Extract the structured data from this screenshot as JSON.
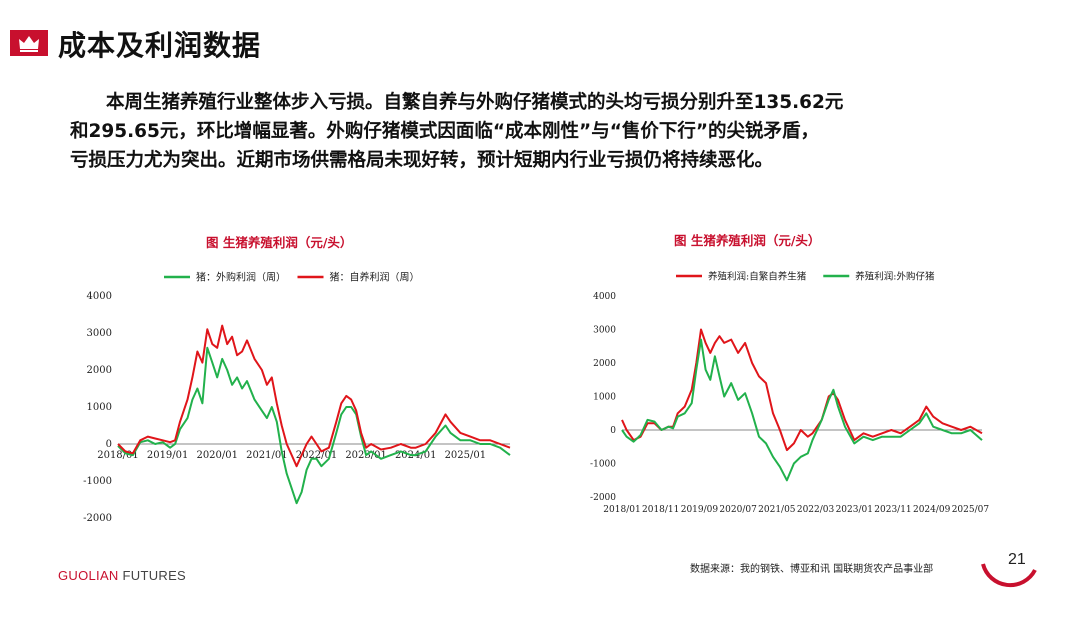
{
  "header": {
    "title": "成本及利润数据",
    "icon": "crown-icon",
    "accent": "#c8102e"
  },
  "summary": [
    "本周生猪养殖行业整体步入亏损。自繁自养与外购仔猪模式的头均亏损分别升至135.62元",
    "和295.65元，环比增幅显著。外购仔猪模式因面临“成本刚性”与“售价下行”的尖锐矛盾，",
    "亏损压力尤为突出。近期市场供需格局未现好转，预计短期内行业亏损仍将持续恶化。"
  ],
  "footer": {
    "brand_main": "GUOLIAN",
    "brand_sub": " FUTURES",
    "source": "数据来源：我的钢铁、博亚和讯  国联期货农产品事业部",
    "page_number": "21"
  },
  "chart_data": [
    {
      "type": "line",
      "title": "图    生猪养殖利润（元/头）",
      "ylim": [
        -2000,
        4000
      ],
      "yticks": [
        "4000",
        "3000",
        "2000",
        "1000",
        "0",
        "-1000",
        "-2000"
      ],
      "xticks": [
        "2018/01",
        "2019/01",
        "2020/01",
        "2021/01",
        "2022/01",
        "2023/01",
        "2024/01",
        "2025/01"
      ],
      "xrange": [
        2018.0,
        2025.9
      ],
      "legend": "top",
      "series": [
        {
          "name": "猪：外购利润（周）",
          "color": "#22b14c",
          "points": [
            [
              2018.0,
              -50
            ],
            [
              2018.15,
              -250
            ],
            [
              2018.3,
              -300
            ],
            [
              2018.45,
              50
            ],
            [
              2018.6,
              100
            ],
            [
              2018.75,
              0
            ],
            [
              2018.9,
              50
            ],
            [
              2019.05,
              -100
            ],
            [
              2019.15,
              0
            ],
            [
              2019.25,
              400
            ],
            [
              2019.4,
              700
            ],
            [
              2019.5,
              1200
            ],
            [
              2019.6,
              1500
            ],
            [
              2019.7,
              1100
            ],
            [
              2019.8,
              2600
            ],
            [
              2019.9,
              2200
            ],
            [
              2020.0,
              1800
            ],
            [
              2020.1,
              2300
            ],
            [
              2020.2,
              2000
            ],
            [
              2020.3,
              1600
            ],
            [
              2020.4,
              1800
            ],
            [
              2020.5,
              1500
            ],
            [
              2020.6,
              1700
            ],
            [
              2020.75,
              1200
            ],
            [
              2020.9,
              900
            ],
            [
              2021.0,
              700
            ],
            [
              2021.1,
              1000
            ],
            [
              2021.2,
              600
            ],
            [
              2021.3,
              -200
            ],
            [
              2021.4,
              -800
            ],
            [
              2021.5,
              -1200
            ],
            [
              2021.6,
              -1600
            ],
            [
              2021.7,
              -1300
            ],
            [
              2021.8,
              -700
            ],
            [
              2021.9,
              -400
            ],
            [
              2022.0,
              -400
            ],
            [
              2022.1,
              -600
            ],
            [
              2022.25,
              -400
            ],
            [
              2022.4,
              300
            ],
            [
              2022.5,
              800
            ],
            [
              2022.6,
              1000
            ],
            [
              2022.7,
              1000
            ],
            [
              2022.8,
              800
            ],
            [
              2022.9,
              200
            ],
            [
              2023.0,
              -300
            ],
            [
              2023.1,
              -200
            ],
            [
              2023.3,
              -400
            ],
            [
              2023.5,
              -300
            ],
            [
              2023.7,
              -200
            ],
            [
              2023.9,
              -300
            ],
            [
              2024.0,
              -300
            ],
            [
              2024.2,
              -200
            ],
            [
              2024.4,
              200
            ],
            [
              2024.6,
              500
            ],
            [
              2024.7,
              300
            ],
            [
              2024.9,
              100
            ],
            [
              2025.1,
              100
            ],
            [
              2025.3,
              0
            ],
            [
              2025.5,
              0
            ],
            [
              2025.7,
              -100
            ],
            [
              2025.9,
              -300
            ]
          ]
        },
        {
          "name": "猪：自养利润（周）",
          "color": "#e0151a",
          "points": [
            [
              2018.0,
              0
            ],
            [
              2018.15,
              -200
            ],
            [
              2018.3,
              -250
            ],
            [
              2018.45,
              100
            ],
            [
              2018.6,
              200
            ],
            [
              2018.75,
              150
            ],
            [
              2018.9,
              100
            ],
            [
              2019.05,
              50
            ],
            [
              2019.15,
              100
            ],
            [
              2019.25,
              600
            ],
            [
              2019.4,
              1200
            ],
            [
              2019.5,
              1800
            ],
            [
              2019.6,
              2500
            ],
            [
              2019.7,
              2200
            ],
            [
              2019.8,
              3100
            ],
            [
              2019.9,
              2700
            ],
            [
              2020.0,
              2600
            ],
            [
              2020.1,
              3200
            ],
            [
              2020.2,
              2700
            ],
            [
              2020.3,
              2900
            ],
            [
              2020.4,
              2400
            ],
            [
              2020.5,
              2500
            ],
            [
              2020.6,
              2800
            ],
            [
              2020.75,
              2300
            ],
            [
              2020.9,
              2000
            ],
            [
              2021.0,
              1600
            ],
            [
              2021.1,
              1800
            ],
            [
              2021.2,
              1100
            ],
            [
              2021.3,
              500
            ],
            [
              2021.4,
              0
            ],
            [
              2021.5,
              -300
            ],
            [
              2021.6,
              -600
            ],
            [
              2021.7,
              -300
            ],
            [
              2021.8,
              0
            ],
            [
              2021.9,
              200
            ],
            [
              2022.0,
              0
            ],
            [
              2022.1,
              -200
            ],
            [
              2022.25,
              -100
            ],
            [
              2022.4,
              600
            ],
            [
              2022.5,
              1100
            ],
            [
              2022.6,
              1300
            ],
            [
              2022.7,
              1200
            ],
            [
              2022.8,
              900
            ],
            [
              2022.9,
              300
            ],
            [
              2023.0,
              -100
            ],
            [
              2023.1,
              0
            ],
            [
              2023.3,
              -150
            ],
            [
              2023.5,
              -100
            ],
            [
              2023.7,
              0
            ],
            [
              2023.9,
              -100
            ],
            [
              2024.0,
              -100
            ],
            [
              2024.2,
              0
            ],
            [
              2024.4,
              300
            ],
            [
              2024.6,
              800
            ],
            [
              2024.7,
              600
            ],
            [
              2024.9,
              300
            ],
            [
              2025.1,
              200
            ],
            [
              2025.3,
              100
            ],
            [
              2025.5,
              100
            ],
            [
              2025.7,
              0
            ],
            [
              2025.9,
              -100
            ]
          ]
        }
      ]
    },
    {
      "type": "line",
      "title": "图    生猪养殖利润（元/头）",
      "ylim": [
        -2000,
        4000
      ],
      "yticks": [
        "4000",
        "3000",
        "2000",
        "1000",
        "0",
        "-1000",
        "-2000"
      ],
      "xticks": [
        "2018/01",
        "2018/11",
        "2019/09",
        "2020/07",
        "2021/05",
        "2022/03",
        "2023/01",
        "2023/11",
        "2024/09",
        "2025/07"
      ],
      "xrange": [
        2018.0,
        2025.75
      ],
      "legend": "top",
      "series": [
        {
          "name": "养殖利润:自繁自养生猪",
          "color": "#e0151a",
          "points": [
            [
              2018.0,
              300
            ],
            [
              2018.1,
              0
            ],
            [
              2018.25,
              -300
            ],
            [
              2018.4,
              -200
            ],
            [
              2018.55,
              200
            ],
            [
              2018.7,
              200
            ],
            [
              2018.85,
              0
            ],
            [
              2019.0,
              100
            ],
            [
              2019.1,
              100
            ],
            [
              2019.2,
              500
            ],
            [
              2019.35,
              700
            ],
            [
              2019.5,
              1200
            ],
            [
              2019.6,
              2000
            ],
            [
              2019.7,
              3000
            ],
            [
              2019.8,
              2600
            ],
            [
              2019.9,
              2300
            ],
            [
              2020.0,
              2600
            ],
            [
              2020.1,
              2800
            ],
            [
              2020.2,
              2600
            ],
            [
              2020.35,
              2700
            ],
            [
              2020.5,
              2300
            ],
            [
              2020.65,
              2600
            ],
            [
              2020.8,
              2000
            ],
            [
              2020.95,
              1600
            ],
            [
              2021.1,
              1400
            ],
            [
              2021.25,
              500
            ],
            [
              2021.4,
              0
            ],
            [
              2021.55,
              -600
            ],
            [
              2021.7,
              -400
            ],
            [
              2021.85,
              0
            ],
            [
              2022.0,
              -200
            ],
            [
              2022.1,
              -100
            ],
            [
              2022.3,
              300
            ],
            [
              2022.45,
              1000
            ],
            [
              2022.55,
              1100
            ],
            [
              2022.65,
              900
            ],
            [
              2022.8,
              300
            ],
            [
              2023.0,
              -300
            ],
            [
              2023.2,
              -100
            ],
            [
              2023.4,
              -200
            ],
            [
              2023.6,
              -100
            ],
            [
              2023.8,
              0
            ],
            [
              2024.0,
              -100
            ],
            [
              2024.2,
              100
            ],
            [
              2024.4,
              300
            ],
            [
              2024.55,
              700
            ],
            [
              2024.7,
              400
            ],
            [
              2024.9,
              200
            ],
            [
              2025.1,
              100
            ],
            [
              2025.3,
              0
            ],
            [
              2025.5,
              100
            ],
            [
              2025.75,
              -100
            ]
          ]
        },
        {
          "name": "养殖利润:外购仔猪",
          "color": "#22b14c",
          "points": [
            [
              2018.0,
              0
            ],
            [
              2018.1,
              -200
            ],
            [
              2018.25,
              -350
            ],
            [
              2018.4,
              -150
            ],
            [
              2018.55,
              300
            ],
            [
              2018.7,
              250
            ],
            [
              2018.85,
              0
            ],
            [
              2019.0,
              100
            ],
            [
              2019.1,
              50
            ],
            [
              2019.2,
              400
            ],
            [
              2019.35,
              500
            ],
            [
              2019.5,
              800
            ],
            [
              2019.6,
              1800
            ],
            [
              2019.7,
              2700
            ],
            [
              2019.8,
              1800
            ],
            [
              2019.9,
              1500
            ],
            [
              2020.0,
              2200
            ],
            [
              2020.1,
              1600
            ],
            [
              2020.2,
              1000
            ],
            [
              2020.35,
              1400
            ],
            [
              2020.5,
              900
            ],
            [
              2020.65,
              1100
            ],
            [
              2020.8,
              500
            ],
            [
              2020.95,
              -200
            ],
            [
              2021.1,
              -400
            ],
            [
              2021.25,
              -800
            ],
            [
              2021.4,
              -1100
            ],
            [
              2021.55,
              -1500
            ],
            [
              2021.7,
              -1000
            ],
            [
              2021.85,
              -800
            ],
            [
              2022.0,
              -700
            ],
            [
              2022.1,
              -300
            ],
            [
              2022.3,
              300
            ],
            [
              2022.45,
              900
            ],
            [
              2022.55,
              1200
            ],
            [
              2022.65,
              700
            ],
            [
              2022.8,
              100
            ],
            [
              2023.0,
              -400
            ],
            [
              2023.2,
              -200
            ],
            [
              2023.4,
              -300
            ],
            [
              2023.6,
              -200
            ],
            [
              2023.8,
              -200
            ],
            [
              2024.0,
              -200
            ],
            [
              2024.2,
              0
            ],
            [
              2024.4,
              200
            ],
            [
              2024.55,
              500
            ],
            [
              2024.7,
              100
            ],
            [
              2024.9,
              0
            ],
            [
              2025.1,
              -100
            ],
            [
              2025.3,
              -100
            ],
            [
              2025.5,
              0
            ],
            [
              2025.75,
              -300
            ]
          ]
        }
      ]
    }
  ]
}
